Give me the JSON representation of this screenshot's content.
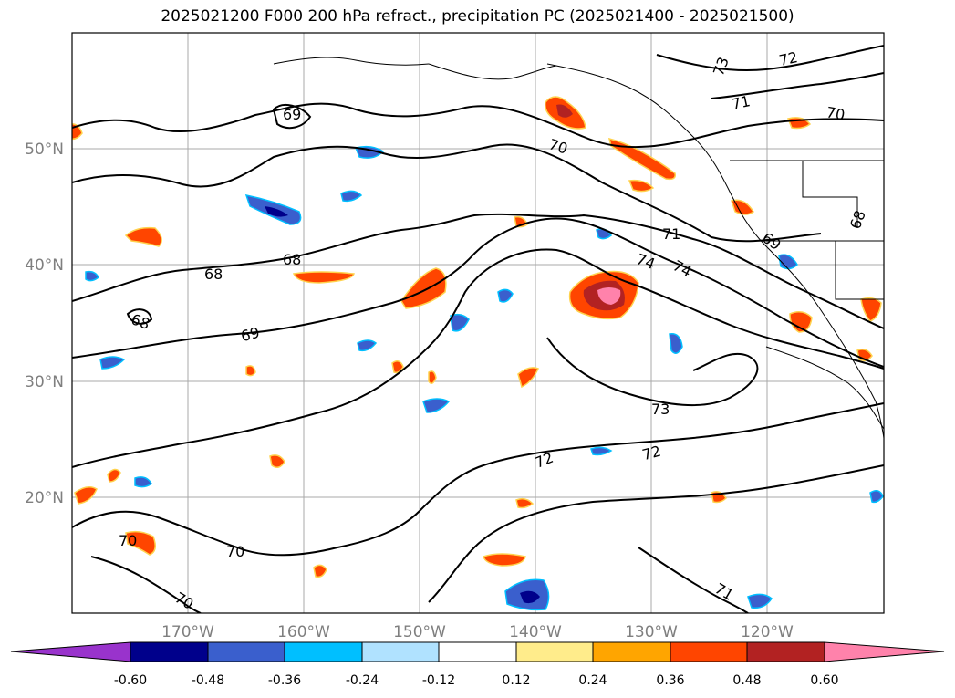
{
  "title": "2025021200 F000 200 hPa refract., precipitation PC (2025021400 - 2025021500)",
  "axes": {
    "longitude_labels": [
      "170°W",
      "160°W",
      "150°W",
      "140°W",
      "130°W",
      "120°W"
    ],
    "latitude_labels": [
      "50°N",
      "40°N",
      "30°N",
      "20°N"
    ]
  },
  "contour_labels": [
    "69",
    "70",
    "73",
    "72",
    "71",
    "70",
    "68",
    "68",
    "68",
    "69",
    "70",
    "70",
    "70",
    "71",
    "74",
    "74",
    "73",
    "72",
    "72",
    "69",
    "68",
    "71"
  ],
  "colorbar": {
    "ticks": [
      "-0.60",
      "-0.48",
      "-0.36",
      "-0.24",
      "-0.12",
      "0.12",
      "0.24",
      "0.36",
      "0.48",
      "0.60"
    ],
    "colors": [
      "#9933cc",
      "#00008b",
      "#3a5fcd",
      "#00bfff",
      "#b0e2ff",
      "#ffffff",
      "#ffec8b",
      "#ffa500",
      "#ff4500",
      "#b22222",
      "#ff82ab"
    ]
  },
  "colors": {
    "contour": "#000000",
    "grid": "#a9a9a9",
    "coast": "#000000"
  }
}
